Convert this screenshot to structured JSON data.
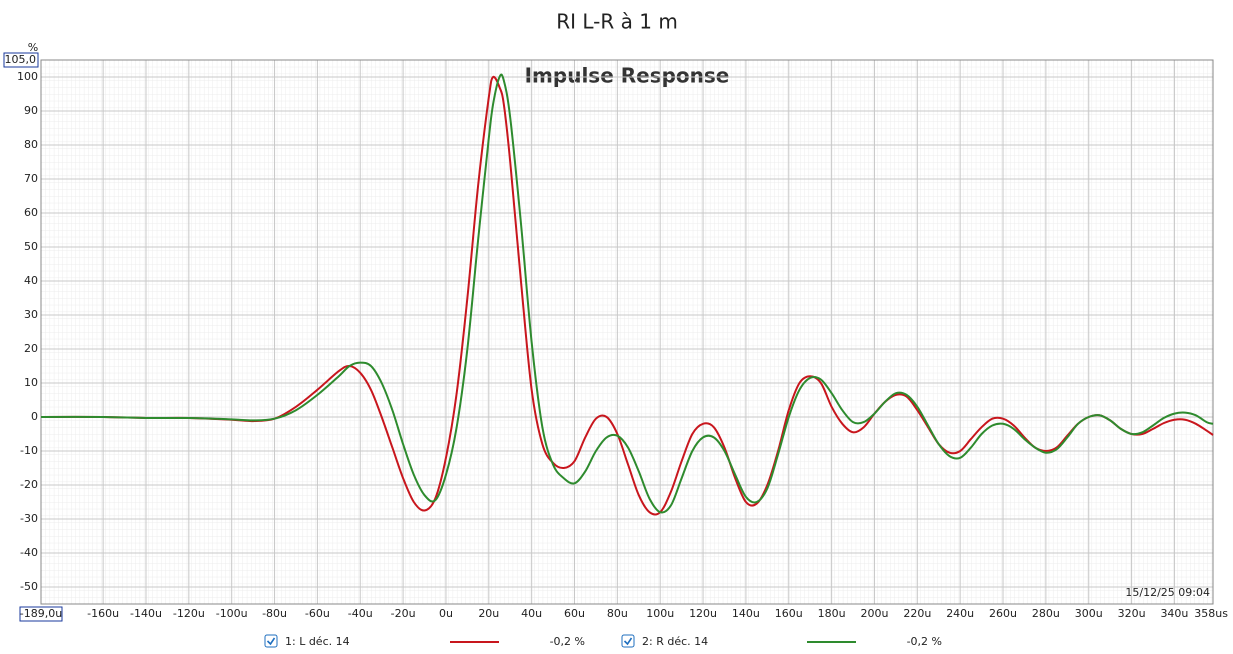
{
  "chart_data": {
    "type": "line",
    "title": "RI L-R à 1 m",
    "subtitle": "Impulse Response",
    "y_unit": "%",
    "timestamp": "15/12/25 09:04",
    "x": [
      -189,
      -160,
      -140,
      -120,
      -100,
      -90,
      -80,
      -70,
      -60,
      -50,
      -45,
      -40,
      -35,
      -30,
      -25,
      -20,
      -15,
      -10,
      -5,
      0,
      5,
      10,
      15,
      20,
      22,
      25,
      27,
      30,
      35,
      40,
      45,
      50,
      55,
      60,
      65,
      70,
      75,
      80,
      85,
      90,
      95,
      100,
      105,
      110,
      115,
      120,
      125,
      130,
      135,
      140,
      145,
      150,
      155,
      160,
      165,
      170,
      175,
      180,
      185,
      190,
      195,
      200,
      205,
      210,
      215,
      220,
      225,
      230,
      235,
      240,
      245,
      250,
      255,
      260,
      265,
      270,
      275,
      280,
      285,
      290,
      295,
      300,
      305,
      310,
      315,
      320,
      325,
      330,
      335,
      340,
      345,
      350,
      355,
      358
    ],
    "series": [
      {
        "name": "1: L déc. 14",
        "legend_value": "-0,2 %",
        "color": "#c8161d",
        "values": [
          0,
          0,
          -0.3,
          -0.3,
          -0.8,
          -1.2,
          -0.5,
          3,
          8,
          13.5,
          15,
          13,
          8,
          0,
          -9,
          -18,
          -25,
          -27.5,
          -24,
          -12,
          7,
          35,
          68,
          94,
          100,
          97,
          92,
          75,
          40,
          8,
          -8,
          -13.5,
          -15,
          -13,
          -6,
          -0.5,
          0,
          -5,
          -14,
          -23,
          -28,
          -28,
          -22,
          -13,
          -5,
          -2,
          -3,
          -9,
          -18,
          -25,
          -25.5,
          -20,
          -10,
          2,
          10,
          12,
          10,
          3,
          -2,
          -4.5,
          -3,
          1,
          4.5,
          6.5,
          6,
          2,
          -3,
          -8,
          -10.5,
          -10,
          -6.5,
          -3,
          -0.5,
          -0.5,
          -2.5,
          -6,
          -9,
          -10,
          -9,
          -5.5,
          -2,
          0,
          0.5,
          -1,
          -3.5,
          -5,
          -5,
          -3.5,
          -1.8,
          -0.8,
          -0.8,
          -2,
          -4,
          -5.3
        ]
      },
      {
        "name": "2: R déc. 14",
        "legend_value": "-0,2 %",
        "color": "#2e8b2e",
        "values": [
          0,
          0,
          -0.3,
          -0.3,
          -0.7,
          -1,
          -0.5,
          2,
          6.5,
          12,
          15,
          16,
          15,
          10,
          2,
          -8,
          -17,
          -23,
          -24.5,
          -17,
          -3,
          20,
          52,
          82,
          92,
          100,
          99,
          88,
          57,
          22,
          -3,
          -14,
          -18,
          -19.5,
          -16,
          -10,
          -6,
          -5.5,
          -9,
          -16,
          -24,
          -28,
          -26,
          -18,
          -10,
          -6,
          -6,
          -10,
          -17,
          -23.5,
          -25,
          -21,
          -11,
          0,
          8,
          11.5,
          11,
          7,
          2,
          -1.5,
          -1.5,
          1,
          4.5,
          7,
          6.5,
          3,
          -2.5,
          -8,
          -11.5,
          -12,
          -9,
          -5,
          -2.5,
          -2,
          -3.5,
          -6.5,
          -9,
          -10.5,
          -9.5,
          -6,
          -2,
          0,
          0.5,
          -1,
          -3.5,
          -5,
          -4.5,
          -2.5,
          -0.3,
          1,
          1.3,
          0.5,
          -1.5,
          -2
        ]
      }
    ],
    "xlim": [
      -189,
      358
    ],
    "ylim": [
      -55,
      105
    ],
    "xticks": [
      {
        "value": -189,
        "label": "-189,0u"
      },
      {
        "value": -160,
        "label": "-160u"
      },
      {
        "value": -140,
        "label": "-140u"
      },
      {
        "value": -120,
        "label": "-120u"
      },
      {
        "value": -100,
        "label": "-100u"
      },
      {
        "value": -80,
        "label": "-80u"
      },
      {
        "value": -60,
        "label": "-60u"
      },
      {
        "value": -40,
        "label": "-40u"
      },
      {
        "value": -20,
        "label": "-20u"
      },
      {
        "value": 0,
        "label": "0u"
      },
      {
        "value": 20,
        "label": "20u"
      },
      {
        "value": 40,
        "label": "40u"
      },
      {
        "value": 60,
        "label": "60u"
      },
      {
        "value": 80,
        "label": "80u"
      },
      {
        "value": 100,
        "label": "100u"
      },
      {
        "value": 120,
        "label": "120u"
      },
      {
        "value": 140,
        "label": "140u"
      },
      {
        "value": 160,
        "label": "160u"
      },
      {
        "value": 180,
        "label": "180u"
      },
      {
        "value": 200,
        "label": "200u"
      },
      {
        "value": 220,
        "label": "220u"
      },
      {
        "value": 240,
        "label": "240u"
      },
      {
        "value": 260,
        "label": "260u"
      },
      {
        "value": 280,
        "label": "280u"
      },
      {
        "value": 300,
        "label": "300u"
      },
      {
        "value": 320,
        "label": "320u"
      },
      {
        "value": 340,
        "label": "340u"
      },
      {
        "value": 358,
        "label": "358us"
      }
    ],
    "yticks": [
      -50,
      -40,
      -30,
      -20,
      -10,
      0,
      10,
      20,
      30,
      40,
      50,
      60,
      70,
      80,
      90,
      100,
      {
        "value": 105,
        "label": "105,0"
      }
    ],
    "grid": true
  }
}
